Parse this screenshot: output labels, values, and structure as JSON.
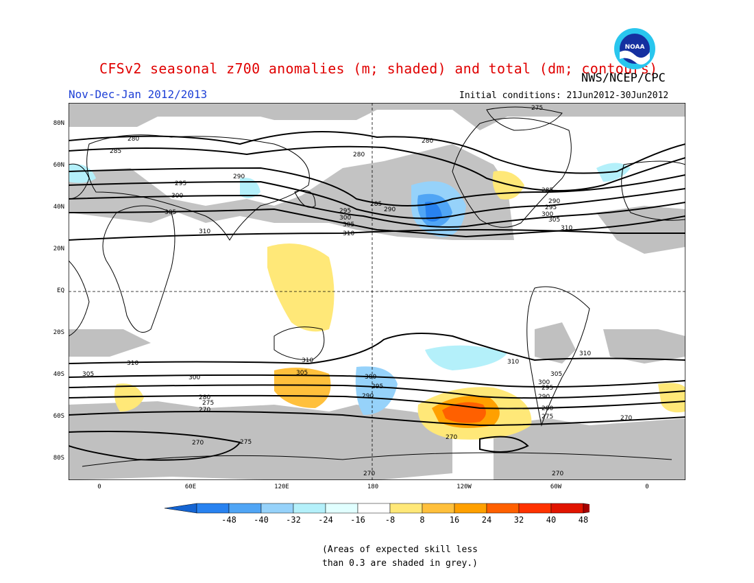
{
  "header": {
    "title": "CFSv2 seasonal z700 anomalies (m; shaded) and total (dm; contours)",
    "period": "Nov-Dec-Jan 2012/2013",
    "agency": "NWS/NCEP/CPC",
    "initial_conditions": "Initial conditions: 21Jun2012-30Jun2012",
    "logo_text": "NOAA"
  },
  "map": {
    "lat_labels": [
      "80N",
      "60N",
      "40N",
      "20N",
      "EQ",
      "20S",
      "40S",
      "60S",
      "80S"
    ],
    "lon_labels": [
      "0",
      "60E",
      "120E",
      "180",
      "120W",
      "60W",
      "0"
    ],
    "contour_labels": [
      "270",
      "275",
      "280",
      "285",
      "290",
      "295",
      "300",
      "305",
      "310"
    ],
    "colors": {
      "land": "#ffffff",
      "low_skill": "#c0c0c0",
      "coastline": "#000000",
      "contour": "#000000"
    }
  },
  "colorbar": {
    "ticks": [
      "-48",
      "-40",
      "-32",
      "-24",
      "-16",
      "-8",
      "8",
      "16",
      "24",
      "32",
      "40",
      "48"
    ],
    "colors": [
      "#1464d2",
      "#2882f0",
      "#50a5f5",
      "#96d2fa",
      "#b4f0fa",
      "#e1ffff",
      "#ffffff",
      "#ffe878",
      "#ffc03c",
      "#ffa000",
      "#ff6000",
      "#ff3200",
      "#e11400",
      "#a50000"
    ]
  },
  "footnote": {
    "line1": "(Areas of expected skill less",
    "line2": "than 0.3 are shaded in grey.)"
  }
}
